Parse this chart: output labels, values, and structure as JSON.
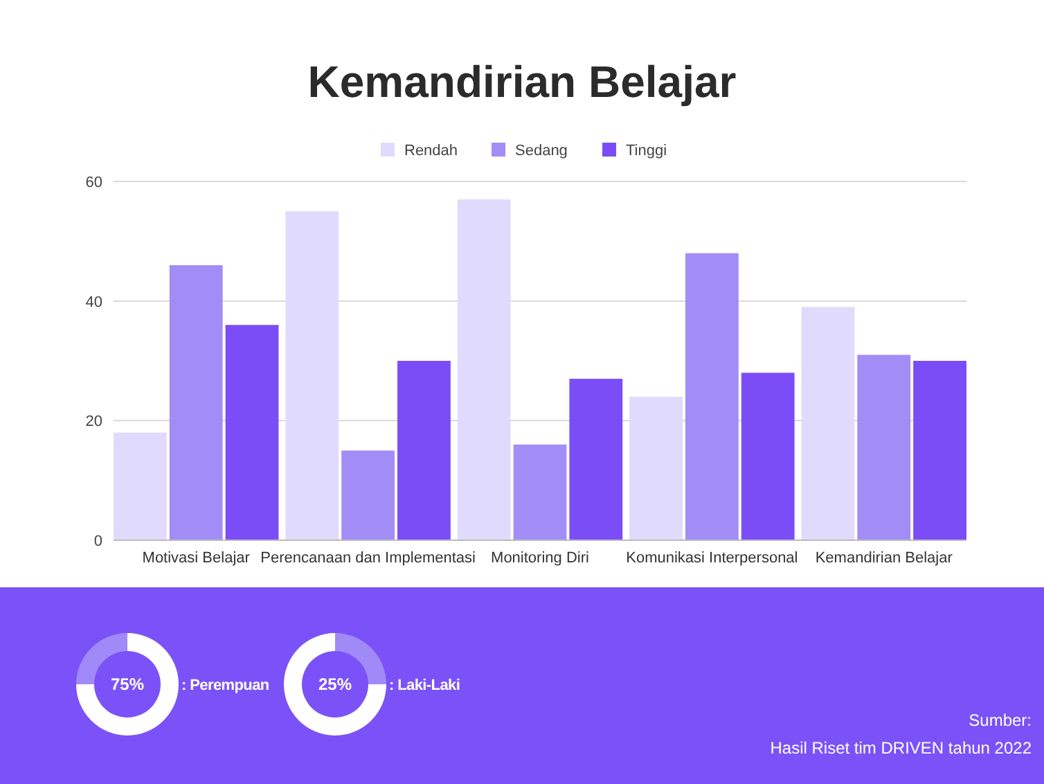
{
  "chart_data": [
    {
      "type": "bar",
      "title": "Kemandirian Belajar",
      "categories": [
        "Motivasi Belajar",
        "Perencanaan dan Implementasi",
        "Monitoring Diri",
        "Komunikasi Interpersonal",
        "Kemandirian Belajar"
      ],
      "series": [
        {
          "name": "Rendah",
          "color": "#e0dbfd",
          "values": [
            18,
            55,
            57,
            24,
            39
          ]
        },
        {
          "name": "Sedang",
          "color": "#a28df6",
          "values": [
            46,
            15,
            16,
            48,
            31
          ]
        },
        {
          "name": "Tinggi",
          "color": "#7b4df7",
          "values": [
            36,
            30,
            27,
            28,
            30
          ]
        }
      ],
      "ylim": [
        0,
        60
      ],
      "yticks": [
        0,
        20,
        40,
        60
      ],
      "grid": "y",
      "legend": "top",
      "annotations": [
        "Sumber:",
        "Hasil Riset tim DRIVEN tahun 2022"
      ]
    },
    {
      "type": "donut",
      "categories": [
        ": Perempuan",
        null
      ],
      "values": [
        75,
        25
      ],
      "colors": [
        "#ffffff",
        "#a08af8"
      ],
      "annotations": [
        "75%"
      ]
    },
    {
      "type": "donut",
      "categories": [
        ": Laki-Laki",
        null
      ],
      "values": [
        25,
        75
      ],
      "colors": [
        "#a08af8",
        "#ffffff"
      ],
      "annotations": [
        "25%"
      ]
    }
  ]
}
